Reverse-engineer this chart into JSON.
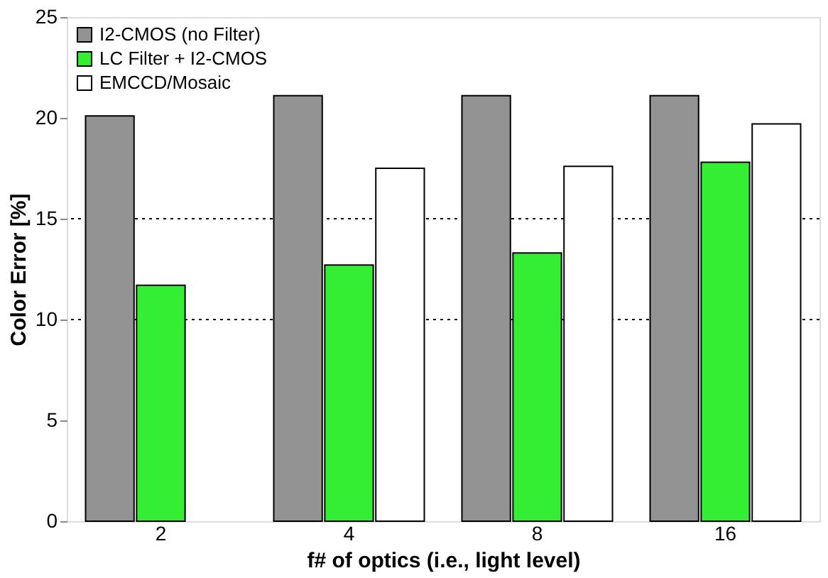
{
  "chart_data": {
    "type": "bar",
    "xlabel": "f# of optics (i.e., light level)",
    "ylabel": "Color Error [%]",
    "categories": [
      "2",
      "4",
      "8",
      "16"
    ],
    "series": [
      {
        "name": "I2-CMOS (no Filter)",
        "color": "#939393",
        "values": [
          20.1,
          21.1,
          21.1,
          21.1
        ]
      },
      {
        "name": "LC Filter + I2-CMOS",
        "color": "#33ee33",
        "values": [
          11.7,
          12.7,
          13.3,
          17.8
        ]
      },
      {
        "name": "EMCCD/Mosaic",
        "color": "#ffffff",
        "values": [
          null,
          17.5,
          17.6,
          19.7
        ]
      }
    ],
    "ylim": [
      0,
      25
    ],
    "yticks": [
      0,
      5,
      10,
      15,
      20,
      25
    ],
    "grid": false,
    "legend": "top left",
    "ref_lines": [
      {
        "axis": "y",
        "value": 10,
        "label": null,
        "line_style": "dotted"
      },
      {
        "axis": "y",
        "value": 15,
        "label": null,
        "line_style": "dotted"
      }
    ]
  }
}
